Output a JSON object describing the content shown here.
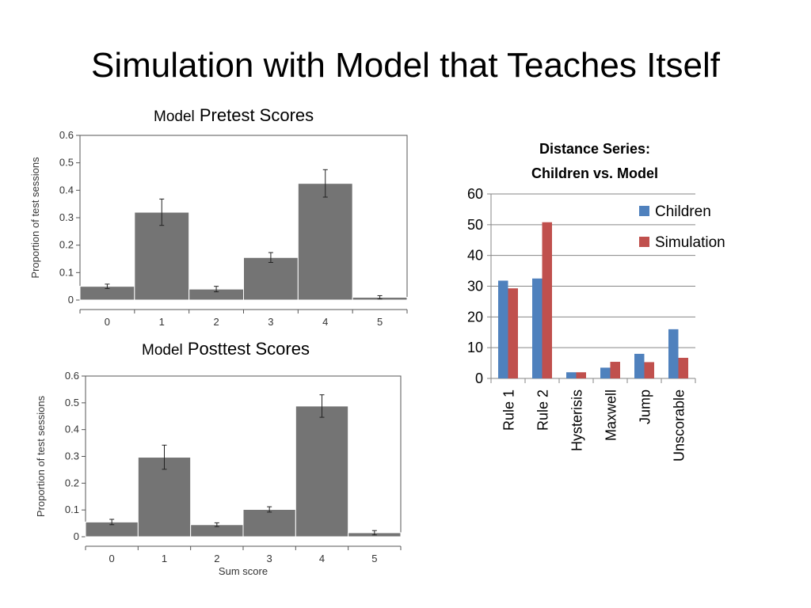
{
  "slide": {
    "title": "Simulation with Model that Teaches Itself"
  },
  "colors": {
    "bar_gray": "#747474",
    "children": "#4F81BD",
    "simulation": "#C0504D"
  },
  "chart_data": [
    {
      "id": "pretest",
      "type": "bar",
      "title_prefix": "Model",
      "title": "Pretest Scores",
      "ylabel": "Proportion of test sessions",
      "xlabel": "",
      "ylim": [
        0,
        0.6
      ],
      "yticks": [
        "0",
        "0.1",
        "0.2",
        "0.3",
        "0.4",
        "0.5",
        "0.6"
      ],
      "categories": [
        "0",
        "1",
        "2",
        "3",
        "4",
        "5"
      ],
      "values": [
        0.05,
        0.32,
        0.04,
        0.155,
        0.425,
        0.01
      ],
      "errors": [
        0.008,
        0.048,
        0.01,
        0.018,
        0.05,
        0.006
      ]
    },
    {
      "id": "posttest",
      "type": "bar",
      "title_prefix": "Model",
      "title": "Posttest Scores",
      "ylabel": "Proportion of test sessions",
      "xlabel": "Sum score",
      "ylim": [
        0,
        0.6
      ],
      "yticks": [
        "0",
        "0.1",
        "0.2",
        "0.3",
        "0.4",
        "0.5",
        "0.6"
      ],
      "categories": [
        "0",
        "1",
        "2",
        "3",
        "4",
        "5"
      ],
      "values": [
        0.055,
        0.297,
        0.045,
        0.102,
        0.488,
        0.015
      ],
      "errors": [
        0.01,
        0.045,
        0.007,
        0.01,
        0.042,
        0.008
      ]
    },
    {
      "id": "distance",
      "type": "bar",
      "title_lines": [
        "Distance Series:",
        "Children vs. Model"
      ],
      "ylim": [
        0,
        60
      ],
      "yticks": [
        "0",
        "10",
        "20",
        "30",
        "40",
        "50",
        "60"
      ],
      "categories": [
        "Rule 1",
        "Rule 2",
        "Hysterisis",
        "Maxwell",
        "Jump",
        "Unscorable"
      ],
      "legend_position": "top-right",
      "series": [
        {
          "name": "Children",
          "values": [
            31.8,
            32.5,
            2.0,
            3.5,
            8.0,
            16.0
          ]
        },
        {
          "name": "Simulation",
          "values": [
            29.3,
            50.8,
            2.0,
            5.4,
            5.3,
            6.7
          ]
        }
      ]
    }
  ]
}
